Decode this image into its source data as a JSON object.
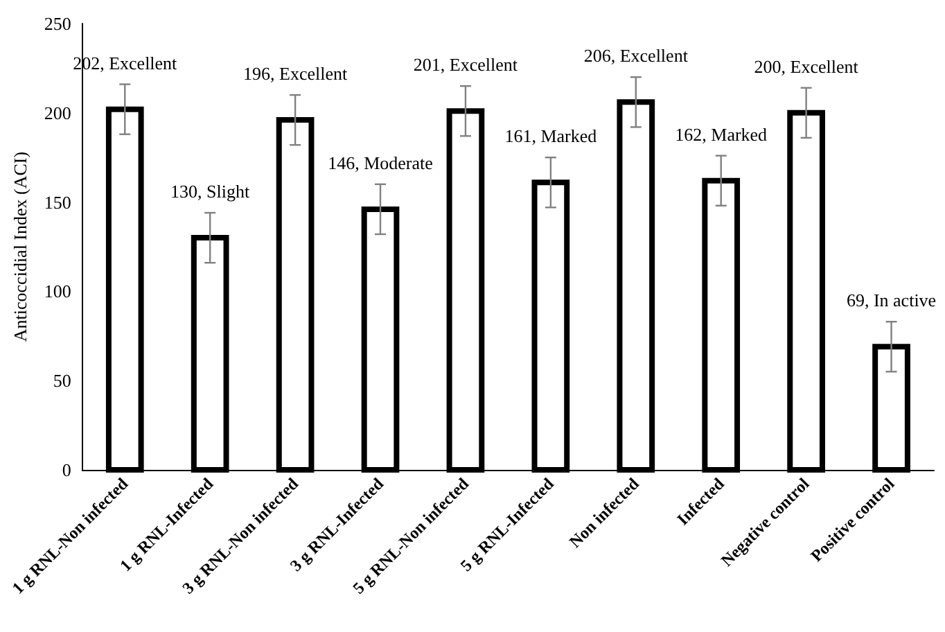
{
  "chart_data": {
    "type": "bar",
    "ylabel": "Anticoccidial Index (ACI)",
    "categories": [
      "1 g RNL-Non infected",
      "1 g RNL-Infected",
      "3 g RNL-Non infected",
      "3 g RNL-Infected",
      "5 g RNL-Non infected",
      "5 g RNL-Infected",
      "Non infected",
      "Infected",
      "Negative control",
      "Positive control"
    ],
    "values": [
      202,
      130,
      196,
      146,
      201,
      161,
      206,
      162,
      200,
      69
    ],
    "value_labels": [
      "202, Excellent",
      "130, Slight",
      "196, Excellent",
      "146, Moderate",
      "201, Excellent",
      "161, Marked",
      "206, Excellent",
      "162, Marked",
      "200, Excellent",
      "69, In active"
    ],
    "errors": [
      14,
      14,
      14,
      14,
      14,
      14,
      14,
      14,
      14,
      14
    ],
    "color": "#ffffff",
    "ylim": [
      0,
      250
    ],
    "yticks": [
      0,
      50,
      100,
      150,
      200,
      250
    ],
    "grid": false
  }
}
